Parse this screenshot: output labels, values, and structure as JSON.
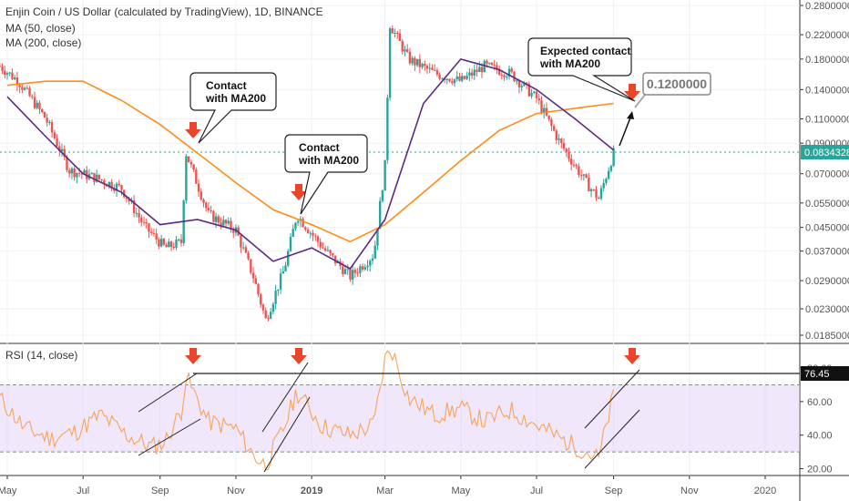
{
  "header": {
    "title": "Enjin Coin / US Dollar (calculated by TradingView), 1D, BINANCE",
    "ma50_label": "MA (50, close)",
    "ma200_label": "MA (200, close)",
    "rsi_label": "RSI (14, close)"
  },
  "colors": {
    "up": "#26a69a",
    "down": "#ef5350",
    "ma50": "#5b2a86",
    "ma200": "#ff8c1a",
    "rsi": "#f7a35c",
    "rsi_band": "#e1c9f7",
    "arrow": "#e8452c",
    "price_badge": "#26a69a"
  },
  "annotations": {
    "contact_1": [
      "Contact",
      "with MA200"
    ],
    "contact_2": [
      "Contact",
      "with MA200"
    ],
    "expected": [
      "Expected contact",
      "with MA200"
    ],
    "target_value": "0.1200000"
  },
  "chart_data": [
    {
      "type": "line",
      "title": "Enjin Coin / US Dollar (calculated by TradingView), 1D, BINANCE",
      "scale": "log",
      "x_axis_labels": [
        "May",
        "Jul",
        "Sep",
        "Nov",
        "2019",
        "Mar",
        "May",
        "Jul",
        "Sep",
        "Nov",
        "2020"
      ],
      "y_axis_labels": [
        "0.2800000",
        "0.2200000",
        "0.1800000",
        "0.1400000",
        "0.1100000",
        "0.0900000",
        "0.0700000",
        "0.0550000",
        "0.0450000",
        "0.0370000",
        "0.0290000",
        "0.0230000",
        "0.0185000"
      ],
      "last_price": "0.0834328",
      "series": [
        {
          "name": "MA (50, close)",
          "x": [
            "2018-05-01",
            "2018-06-01",
            "2018-07-01",
            "2018-08-01",
            "2018-09-01",
            "2018-10-01",
            "2018-11-01",
            "2018-12-01",
            "2019-01-01",
            "2019-02-01",
            "2019-03-01",
            "2019-04-01",
            "2019-05-01",
            "2019-06-01",
            "2019-07-01",
            "2019-08-01",
            "2019-09-01"
          ],
          "values": [
            0.132,
            0.095,
            0.07,
            0.06,
            0.046,
            0.048,
            0.044,
            0.034,
            0.038,
            0.032,
            0.048,
            0.125,
            0.18,
            0.165,
            0.14,
            0.11,
            0.085
          ]
        },
        {
          "name": "MA (200, close)",
          "x": [
            "2018-05-01",
            "2018-06-01",
            "2018-07-01",
            "2018-08-01",
            "2018-09-01",
            "2018-10-01",
            "2018-11-01",
            "2018-12-01",
            "2019-01-01",
            "2019-02-01",
            "2019-03-01",
            "2019-04-01",
            "2019-05-01",
            "2019-06-01",
            "2019-07-01",
            "2019-08-01",
            "2019-09-01"
          ],
          "values": [
            0.145,
            0.15,
            0.15,
            0.128,
            0.105,
            0.083,
            0.065,
            0.052,
            0.046,
            0.04,
            0.046,
            0.06,
            0.078,
            0.1,
            0.115,
            0.12,
            0.125
          ]
        },
        {
          "name": "Price",
          "x": [
            "2018-04-25",
            "2018-05-10",
            "2018-06-01",
            "2018-06-20",
            "2018-07-10",
            "2018-08-01",
            "2018-08-20",
            "2018-09-05",
            "2018-09-19",
            "2018-09-21",
            "2018-10-10",
            "2018-11-01",
            "2018-11-15",
            "2018-11-25",
            "2018-12-10",
            "2018-12-20",
            "2019-01-10",
            "2019-02-01",
            "2019-02-20",
            "2019-03-01",
            "2019-03-05",
            "2019-03-20",
            "2019-04-10",
            "2019-05-01",
            "2019-05-20",
            "2019-06-10",
            "2019-07-01",
            "2019-07-20",
            "2019-08-10",
            "2019-08-20",
            "2019-09-01"
          ],
          "values": [
            0.17,
            0.15,
            0.11,
            0.072,
            0.068,
            0.062,
            0.045,
            0.038,
            0.04,
            0.085,
            0.05,
            0.044,
            0.03,
            0.021,
            0.032,
            0.05,
            0.038,
            0.03,
            0.036,
            0.075,
            0.24,
            0.18,
            0.16,
            0.15,
            0.17,
            0.16,
            0.13,
            0.09,
            0.065,
            0.057,
            0.083
          ]
        }
      ],
      "annotations": [
        "Contact with MA200",
        "Contact with MA200",
        "Expected contact with MA200",
        "0.1200000"
      ]
    },
    {
      "type": "line",
      "title": "RSI (14, close)",
      "x_axis_labels": [
        "May",
        "Jul",
        "Sep",
        "Nov",
        "2019",
        "Mar",
        "May",
        "Jul",
        "Sep",
        "Nov",
        "2020"
      ],
      "y_axis_labels": [
        "80.00",
        "60.00",
        "40.00",
        "20.00"
      ],
      "band": [
        30,
        70
      ],
      "level_label": "76.45",
      "ylim": [
        17,
        92
      ],
      "series": [
        {
          "name": "RSI (14, close)",
          "x": [
            "2018-04-25",
            "2018-05-15",
            "2018-06-05",
            "2018-06-25",
            "2018-07-15",
            "2018-08-05",
            "2018-08-25",
            "2018-09-05",
            "2018-09-19",
            "2018-09-21",
            "2018-10-10",
            "2018-11-01",
            "2018-11-15",
            "2018-11-25",
            "2018-12-10",
            "2018-12-20",
            "2019-01-10",
            "2019-02-01",
            "2019-02-20",
            "2019-03-01",
            "2019-03-06",
            "2019-03-20",
            "2019-04-10",
            "2019-05-01",
            "2019-05-20",
            "2019-06-10",
            "2019-07-01",
            "2019-07-20",
            "2019-08-10",
            "2019-08-20",
            "2019-09-01"
          ],
          "values": [
            62,
            44,
            38,
            42,
            52,
            40,
            33,
            36,
            56,
            76,
            48,
            44,
            28,
            22,
            45,
            66,
            45,
            40,
            46,
            85,
            92,
            62,
            52,
            56,
            48,
            55,
            46,
            38,
            30,
            26,
            64
          ]
        }
      ]
    }
  ]
}
